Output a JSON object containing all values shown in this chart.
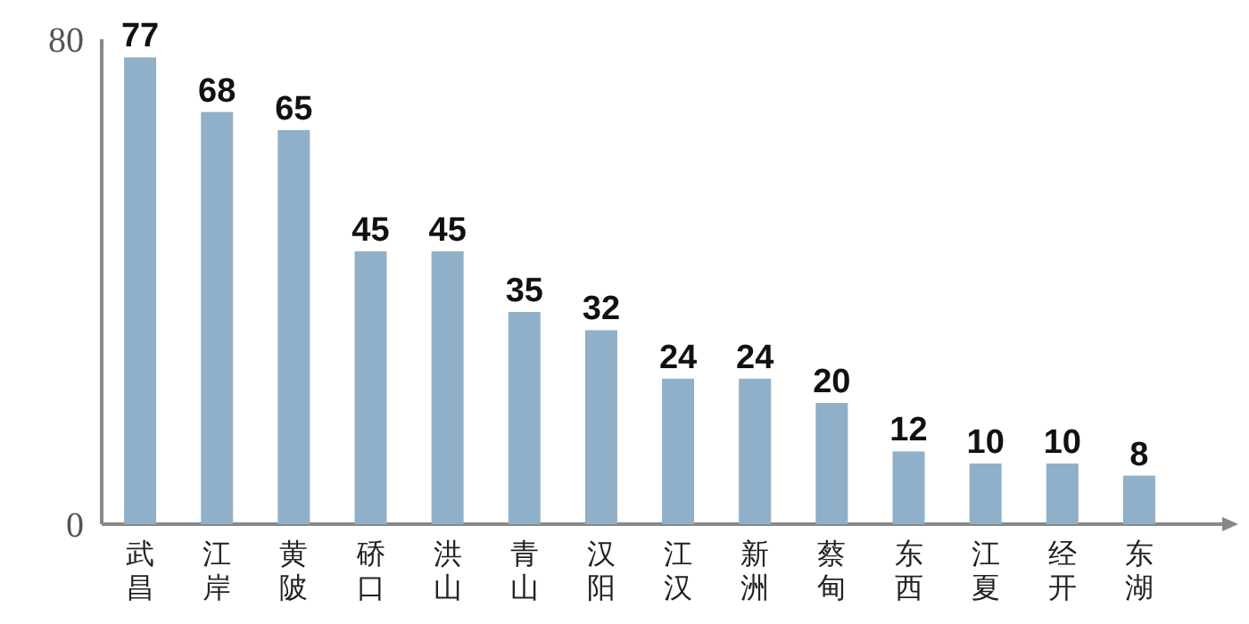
{
  "chart_data": {
    "type": "bar",
    "categories": [
      "武昌",
      "江岸",
      "黄陂",
      "硚口",
      "洪山",
      "青山",
      "汉阳",
      "江汉",
      "新洲",
      "蔡甸",
      "东西",
      "江夏",
      "经开",
      "东湖"
    ],
    "values": [
      77,
      68,
      65,
      45,
      45,
      35,
      32,
      24,
      24,
      20,
      12,
      10,
      10,
      8
    ],
    "color": "#8fb0c8",
    "ylim": [
      0,
      80
    ],
    "yticks": [
      0,
      80
    ],
    "data_labels": true
  }
}
